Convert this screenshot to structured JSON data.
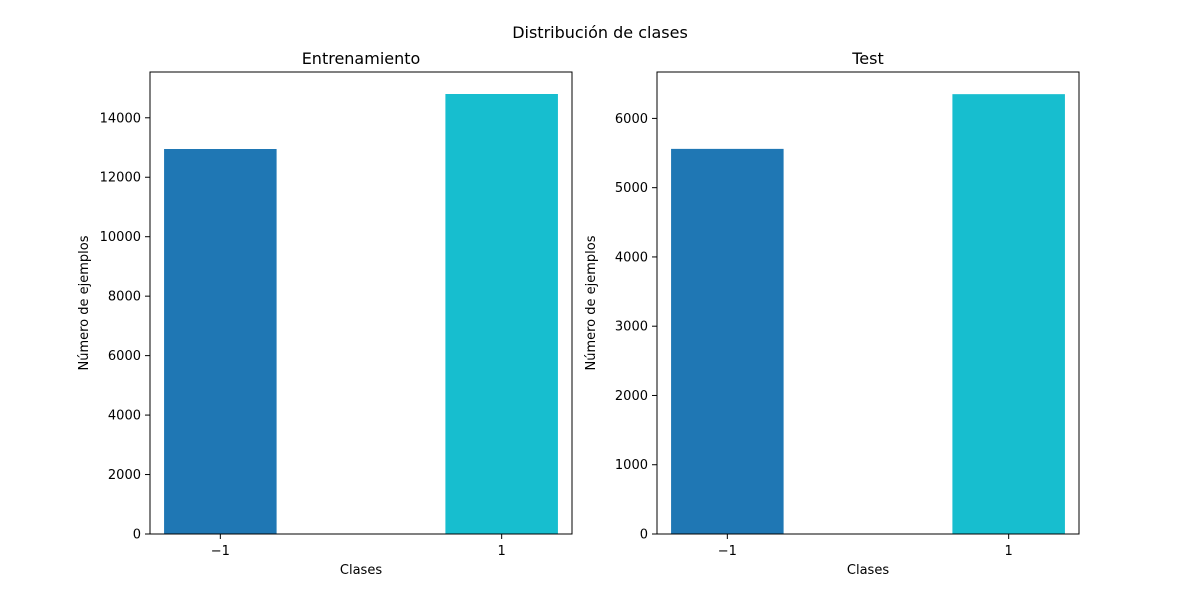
{
  "figure": {
    "suptitle": "Distribución de clases"
  },
  "chart_data": [
    {
      "type": "bar",
      "title": "Entrenamiento",
      "xlabel": "Clases",
      "ylabel": "Número de ejemplos",
      "categories": [
        "−1",
        "1"
      ],
      "values": [
        12950,
        14800
      ],
      "colors": [
        "#1f77b4",
        "#17becf"
      ],
      "xlim": [
        -1.5,
        1.5
      ],
      "ylim": [
        0,
        15540
      ],
      "yticks": [
        0,
        2000,
        4000,
        6000,
        8000,
        10000,
        12000,
        14000
      ],
      "grid": false
    },
    {
      "type": "bar",
      "title": "Test",
      "xlabel": "Clases",
      "ylabel": "Número de ejemplos",
      "categories": [
        "−1",
        "1"
      ],
      "values": [
        5560,
        6350
      ],
      "colors": [
        "#1f77b4",
        "#17becf"
      ],
      "xlim": [
        -1.5,
        1.5
      ],
      "ylim": [
        0,
        6670
      ],
      "yticks": [
        0,
        1000,
        2000,
        3000,
        4000,
        5000,
        6000
      ],
      "grid": false
    }
  ]
}
